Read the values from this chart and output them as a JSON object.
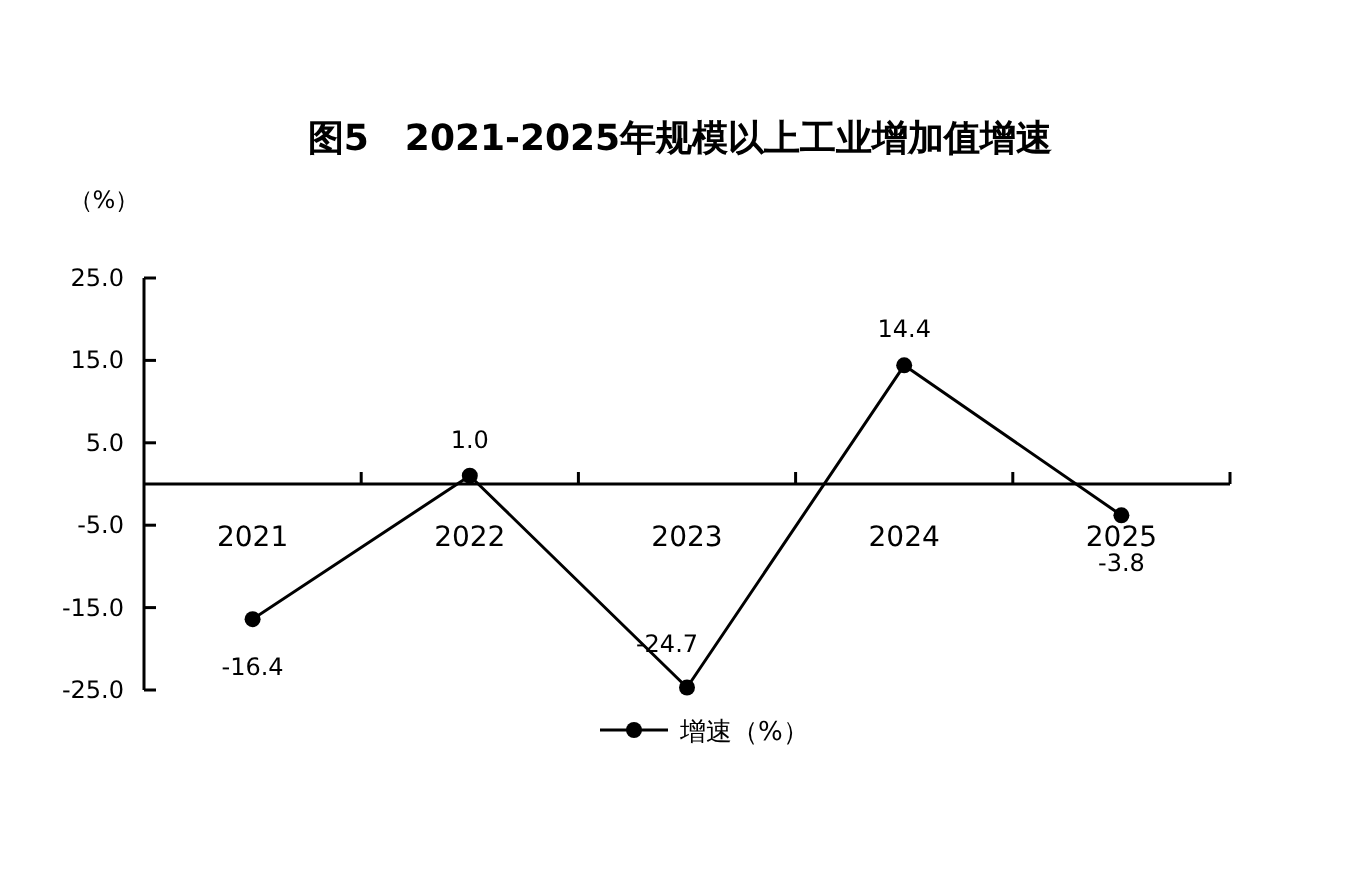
{
  "chart_data": {
    "type": "line",
    "title": "图5　2021-2025年规模以上工业增加值增速",
    "ylabel": "（%）",
    "categories": [
      "2021",
      "2022",
      "2023",
      "2024",
      "2025"
    ],
    "series": [
      {
        "name": "增速（%）",
        "color": "#000000",
        "values": [
          -16.4,
          1.0,
          -24.7,
          14.4,
          -3.8
        ],
        "value_labels": [
          "-16.4",
          "1.0",
          "-24.7",
          "14.4",
          "-3.8"
        ]
      }
    ],
    "ylim": [
      -25,
      25
    ],
    "yticks": [
      {
        "value": 25,
        "label": "25.0"
      },
      {
        "value": 15,
        "label": "15.0"
      },
      {
        "value": 5,
        "label": "5.0"
      },
      {
        "value": -5,
        "label": "-5.0"
      },
      {
        "value": -15,
        "label": "-15.0"
      },
      {
        "value": -25,
        "label": "-25.0"
      }
    ],
    "marker": "circle",
    "legend": "bottom",
    "grid": false
  }
}
